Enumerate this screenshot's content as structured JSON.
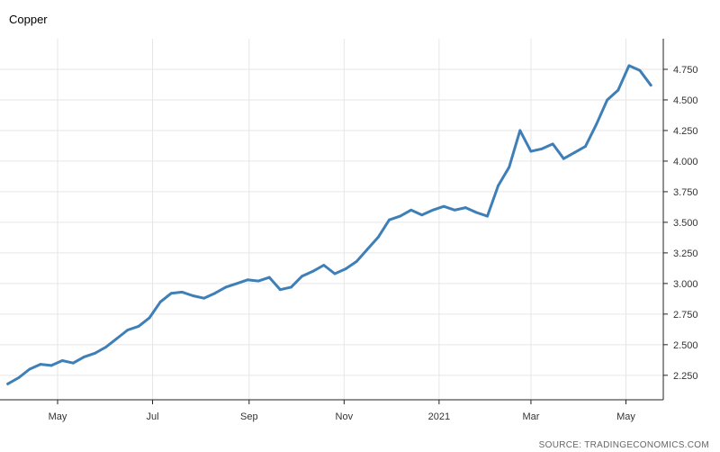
{
  "chart_data": {
    "type": "line",
    "title": "Copper",
    "source": "SOURCE: TRADINGECONOMICS.COM",
    "xlabel": "",
    "ylabel": "",
    "x_ticks": [
      "May",
      "Jul",
      "Sep",
      "Nov",
      "2021",
      "Mar",
      "May"
    ],
    "y_ticks": [
      "2.250",
      "2.500",
      "2.750",
      "3.000",
      "3.250",
      "3.500",
      "3.750",
      "4.000",
      "4.250",
      "4.500",
      "4.750"
    ],
    "ylim": [
      2.05,
      5.0
    ],
    "grid": true,
    "legend": "none",
    "color": "#3f7fb8",
    "x": [
      "2020-03-30",
      "2020-04-06",
      "2020-04-13",
      "2020-04-20",
      "2020-04-27",
      "2020-05-04",
      "2020-05-11",
      "2020-05-18",
      "2020-05-25",
      "2020-06-01",
      "2020-06-08",
      "2020-06-15",
      "2020-06-22",
      "2020-06-29",
      "2020-07-06",
      "2020-07-13",
      "2020-07-20",
      "2020-07-27",
      "2020-08-03",
      "2020-08-10",
      "2020-08-17",
      "2020-08-24",
      "2020-08-31",
      "2020-09-07",
      "2020-09-14",
      "2020-09-21",
      "2020-09-28",
      "2020-10-05",
      "2020-10-12",
      "2020-10-19",
      "2020-10-26",
      "2020-11-02",
      "2020-11-09",
      "2020-11-16",
      "2020-11-23",
      "2020-11-30",
      "2020-12-07",
      "2020-12-14",
      "2020-12-21",
      "2020-12-28",
      "2021-01-04",
      "2021-01-11",
      "2021-01-18",
      "2021-01-25",
      "2021-02-01",
      "2021-02-08",
      "2021-02-15",
      "2021-02-22",
      "2021-03-01",
      "2021-03-08",
      "2021-03-15",
      "2021-03-22",
      "2021-03-29",
      "2021-04-05",
      "2021-04-12",
      "2021-04-19",
      "2021-04-26",
      "2021-05-03",
      "2021-05-10",
      "2021-05-17"
    ],
    "series": [
      {
        "values": [
          2.18,
          2.23,
          2.3,
          2.34,
          2.33,
          2.37,
          2.35,
          2.4,
          2.43,
          2.48,
          2.55,
          2.62,
          2.65,
          2.72,
          2.85,
          2.92,
          2.93,
          2.9,
          2.88,
          2.92,
          2.97,
          3.0,
          3.03,
          3.02,
          3.05,
          2.95,
          2.97,
          3.06,
          3.1,
          3.15,
          3.08,
          3.12,
          3.18,
          3.28,
          3.38,
          3.52,
          3.55,
          3.6,
          3.56,
          3.6,
          3.63,
          3.6,
          3.62,
          3.58,
          3.55,
          3.8,
          3.95,
          4.25,
          4.08,
          4.1,
          4.14,
          4.02,
          4.07,
          4.12,
          4.3,
          4.5,
          4.58,
          4.78,
          4.74,
          4.62
        ]
      }
    ]
  }
}
